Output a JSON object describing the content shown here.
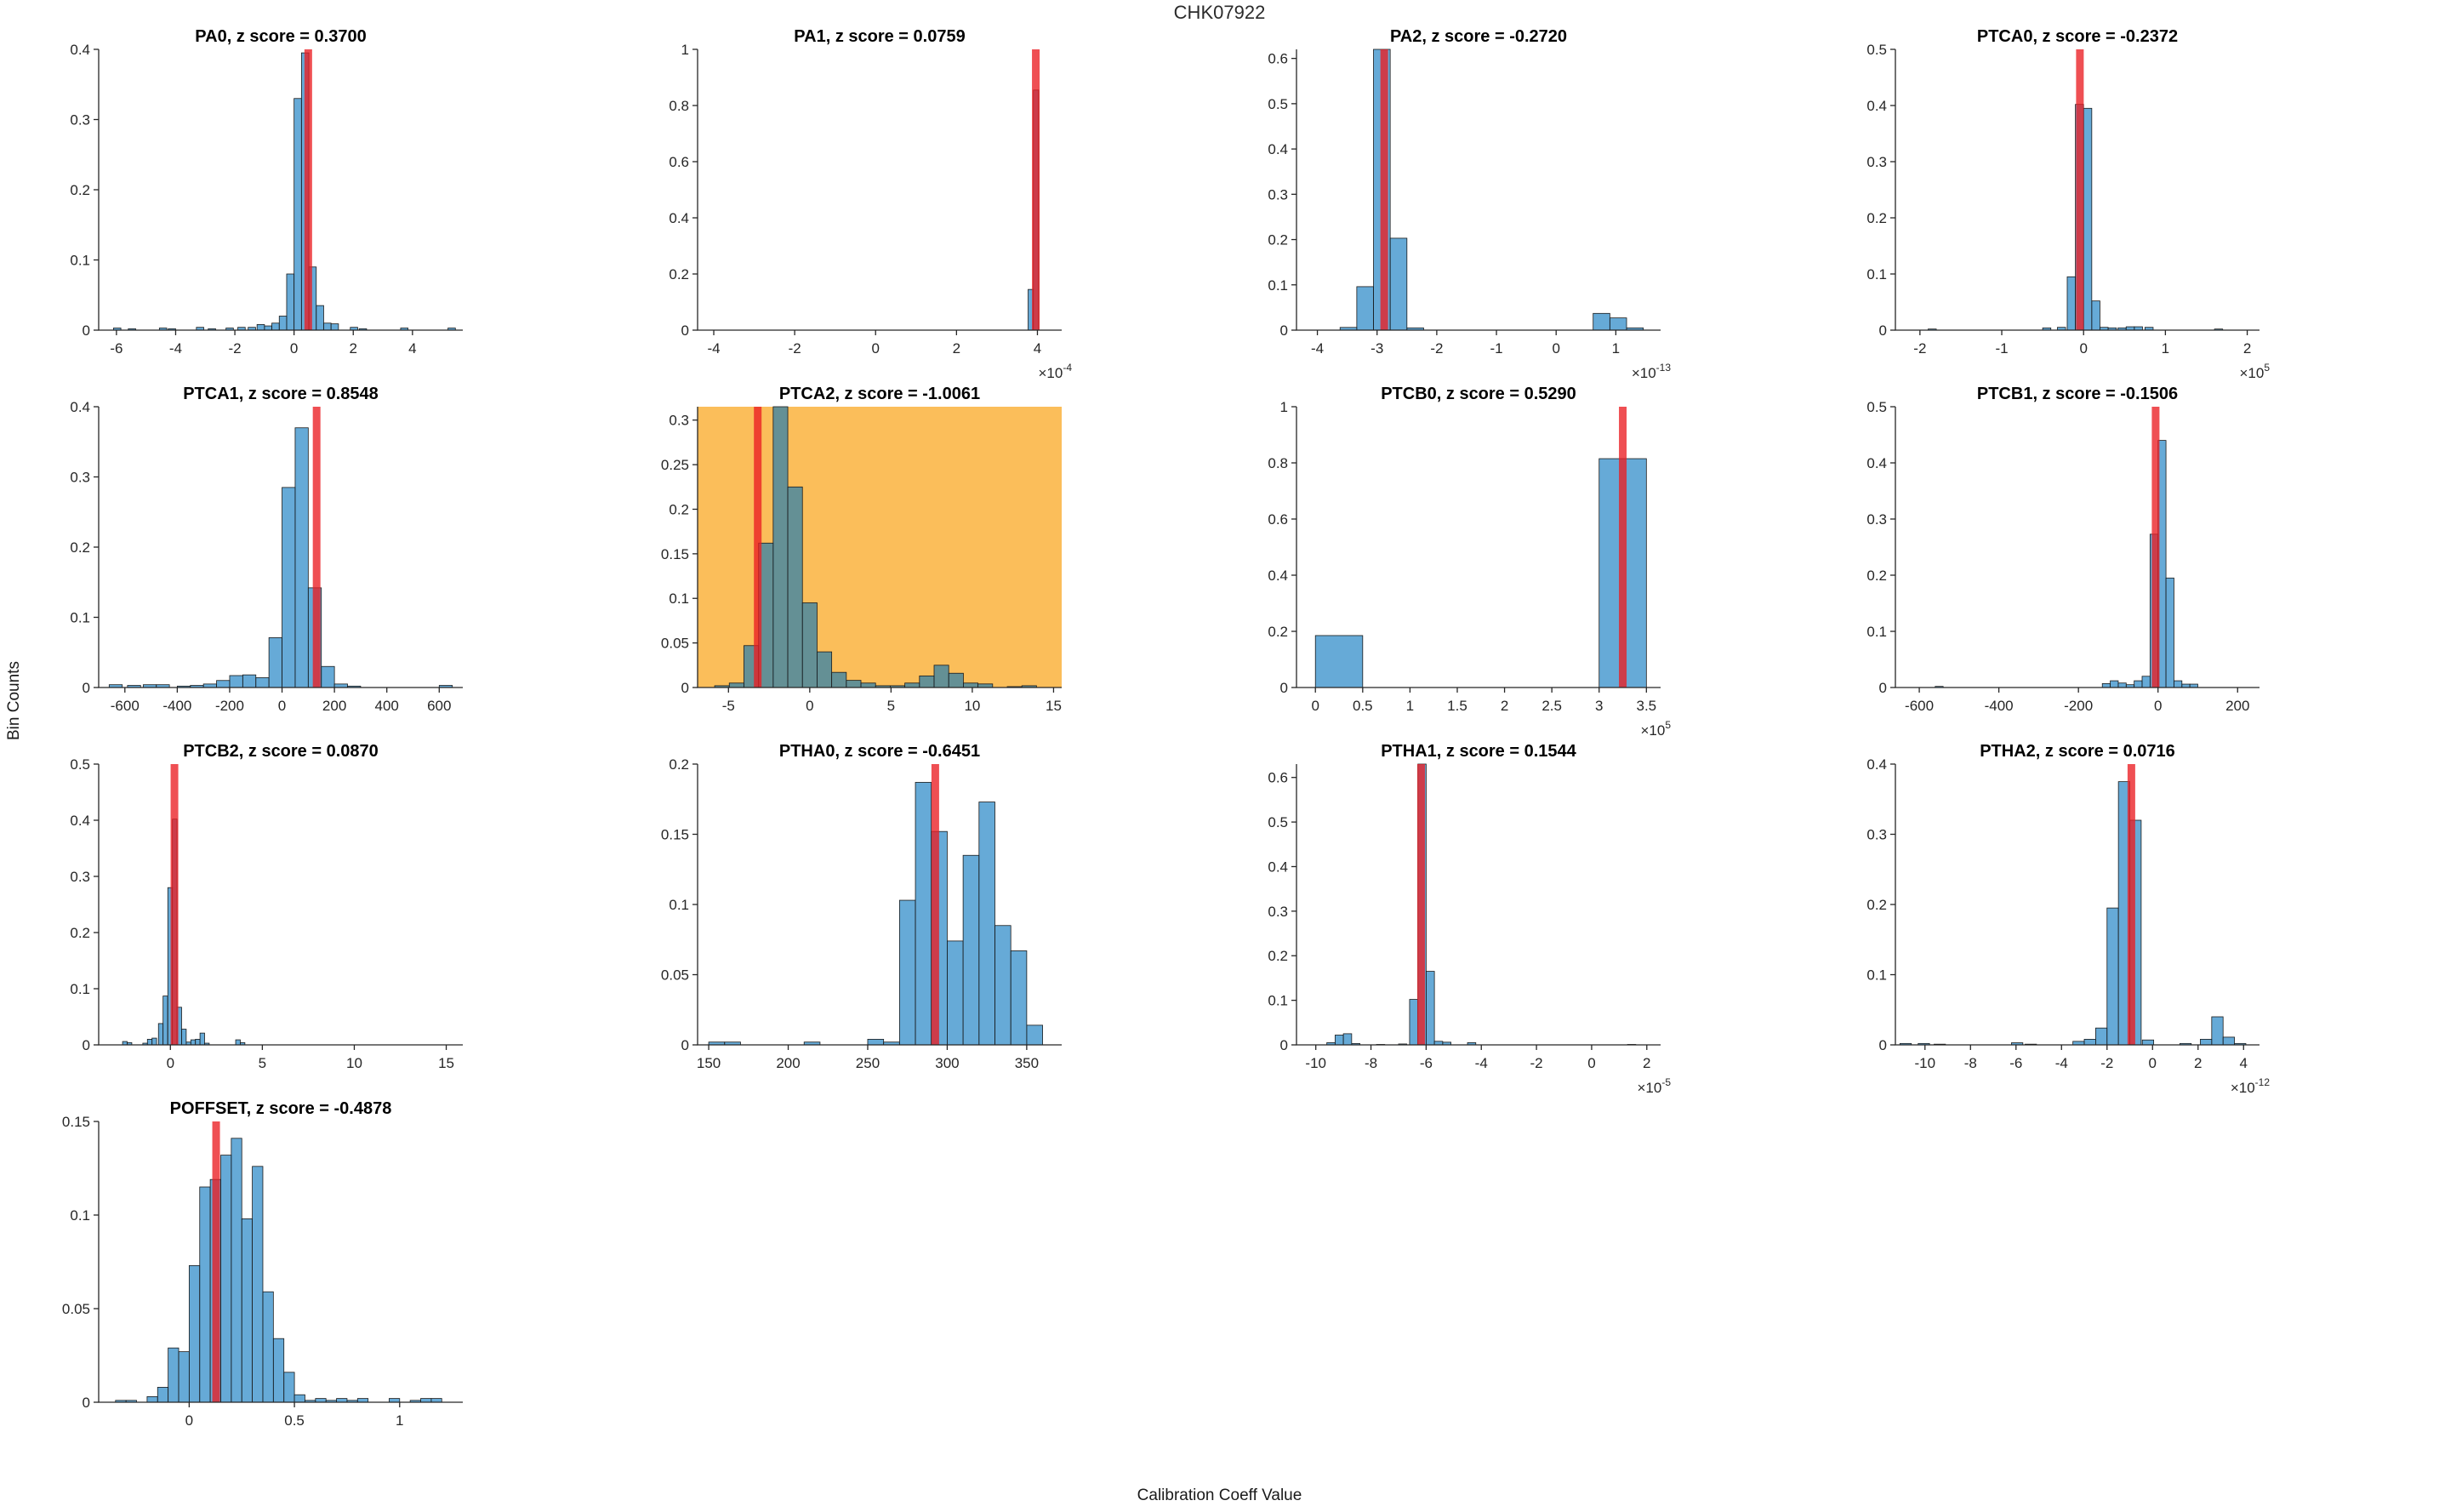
{
  "figure": {
    "title": "CHK07922",
    "ylabel": "Bin Counts",
    "xlabel": "Calibration Coeff Value"
  },
  "colors": {
    "bar_fill": "rgba(0,114,189,0.6)",
    "bar_edge": "#1a1a1a",
    "red_line": "rgba(235,30,35,0.78)",
    "highlight_bg": "#FBBE5A",
    "axis": "#262626",
    "title_text": "#000000",
    "fig_title_text": "#2b2b2b"
  },
  "chart_data": [
    {
      "type": "bar",
      "name": "PA0",
      "title": "PA0, z score = 0.3700",
      "z_score": 0.37,
      "xlim": [
        -6.6,
        5.7
      ],
      "ylim": [
        0,
        0.4
      ],
      "xticks": [
        -6,
        -4,
        -2,
        0,
        2,
        4
      ],
      "yticks": [
        0,
        0.1,
        0.2,
        0.3,
        0.4
      ],
      "x_exponent": null,
      "highlighted": false,
      "red_line_x": 0.48,
      "bin_width": 0.25,
      "bins": [
        [
          -6.1,
          0.003
        ],
        [
          -5.6,
          0.002
        ],
        [
          -4.55,
          0.003
        ],
        [
          -4.25,
          0.002
        ],
        [
          -3.3,
          0.004
        ],
        [
          -2.9,
          0.002
        ],
        [
          -2.3,
          0.003
        ],
        [
          -1.9,
          0.004
        ],
        [
          -1.55,
          0.004
        ],
        [
          -1.25,
          0.008
        ],
        [
          -1.0,
          0.006
        ],
        [
          -0.75,
          0.01
        ],
        [
          -0.5,
          0.02
        ],
        [
          -0.25,
          0.08
        ],
        [
          0,
          0.33
        ],
        [
          0.25,
          0.395
        ],
        [
          0.5,
          0.09
        ],
        [
          0.75,
          0.035
        ],
        [
          1.0,
          0.01
        ],
        [
          1.25,
          0.009
        ],
        [
          1.9,
          0.004
        ],
        [
          2.2,
          0.002
        ],
        [
          3.6,
          0.003
        ],
        [
          5.2,
          0.003
        ]
      ]
    },
    {
      "type": "bar",
      "name": "PA1",
      "title": "PA1, z score = 0.0759",
      "z_score": 0.0759,
      "xlim": [
        -4.4,
        4.6
      ],
      "ylim": [
        0,
        1
      ],
      "xticks": [
        -4,
        -2,
        0,
        2,
        4
      ],
      "yticks": [
        0,
        0.2,
        0.4,
        0.6,
        0.8,
        1
      ],
      "x_exponent": "-4",
      "highlighted": false,
      "red_line_x": 3.96,
      "bin_width": 0.13,
      "bins": [
        [
          3.77,
          0.145
        ],
        [
          3.9,
          0.855
        ]
      ]
    },
    {
      "type": "bar",
      "name": "PA2",
      "title": "PA2, z score = -0.2720",
      "z_score": -0.272,
      "xlim": [
        -4.35,
        1.75
      ],
      "ylim": [
        0,
        0.62
      ],
      "xticks": [
        -4,
        -3,
        -2,
        -1,
        0,
        1
      ],
      "yticks": [
        0,
        0.1,
        0.2,
        0.3,
        0.4,
        0.5,
        0.6
      ],
      "x_exponent": "-13",
      "highlighted": false,
      "red_line_x": -2.88,
      "bin_width": 0.28,
      "bins": [
        [
          -3.62,
          0.006
        ],
        [
          -3.34,
          0.096
        ],
        [
          -3.06,
          0.62
        ],
        [
          -2.78,
          0.203
        ],
        [
          -2.5,
          0.005
        ],
        [
          0.62,
          0.037
        ],
        [
          0.9,
          0.027
        ],
        [
          1.18,
          0.005
        ]
      ]
    },
    {
      "type": "bar",
      "name": "PTCA0",
      "title": "PTCA0, z score = -0.2372",
      "z_score": -0.2372,
      "xlim": [
        -2.3,
        2.15
      ],
      "ylim": [
        0,
        0.5
      ],
      "xticks": [
        -2,
        -1,
        0,
        1,
        2
      ],
      "yticks": [
        0,
        0.1,
        0.2,
        0.3,
        0.4,
        0.5
      ],
      "x_exponent": "5",
      "highlighted": false,
      "red_line_x": -0.045,
      "bin_width": 0.1,
      "bins": [
        [
          -1.9,
          0.002
        ],
        [
          -0.5,
          0.004
        ],
        [
          -0.32,
          0.005
        ],
        [
          -0.2,
          0.095
        ],
        [
          -0.1,
          0.402
        ],
        [
          0,
          0.395
        ],
        [
          0.1,
          0.052
        ],
        [
          0.2,
          0.005
        ],
        [
          0.3,
          0.004
        ],
        [
          0.42,
          0.004
        ],
        [
          0.52,
          0.006
        ],
        [
          0.62,
          0.006
        ],
        [
          0.75,
          0.005
        ],
        [
          1.6,
          0.002
        ]
      ]
    },
    {
      "type": "bar",
      "name": "PTCA1",
      "title": "PTCA1, z score = 0.8548",
      "z_score": 0.8548,
      "xlim": [
        -700,
        690
      ],
      "ylim": [
        0,
        0.4
      ],
      "xticks": [
        -600,
        -400,
        -200,
        0,
        200,
        400,
        600
      ],
      "yticks": [
        0,
        0.1,
        0.2,
        0.3,
        0.4
      ],
      "x_exponent": null,
      "highlighted": false,
      "red_line_x": 132,
      "bin_width": 50,
      "bins": [
        [
          -660,
          0.004
        ],
        [
          -590,
          0.003
        ],
        [
          -530,
          0.004
        ],
        [
          -480,
          0.004
        ],
        [
          -400,
          0.002
        ],
        [
          -350,
          0.003
        ],
        [
          -300,
          0.005
        ],
        [
          -250,
          0.01
        ],
        [
          -200,
          0.017
        ],
        [
          -150,
          0.018
        ],
        [
          -100,
          0.014
        ],
        [
          -50,
          0.071
        ],
        [
          0,
          0.285
        ],
        [
          50,
          0.37
        ],
        [
          100,
          0.142
        ],
        [
          150,
          0.03
        ],
        [
          200,
          0.005
        ],
        [
          250,
          0.002
        ],
        [
          600,
          0.003
        ]
      ]
    },
    {
      "type": "bar",
      "name": "PTCA2",
      "title": "PTCA2, z score = -1.0061",
      "z_score": -1.0061,
      "xlim": [
        -6.9,
        15.5
      ],
      "ylim": [
        0,
        0.315
      ],
      "xticks": [
        -5,
        0,
        5,
        10,
        15
      ],
      "yticks": [
        0,
        0.05,
        0.1,
        0.15,
        0.2,
        0.25,
        0.3
      ],
      "x_exponent": null,
      "highlighted": true,
      "red_line_x": -3.2,
      "bin_width": 0.9,
      "bins": [
        [
          -5.85,
          0.002
        ],
        [
          -4.95,
          0.005
        ],
        [
          -4.05,
          0.047
        ],
        [
          -3.15,
          0.162
        ],
        [
          -2.25,
          0.315
        ],
        [
          -1.35,
          0.225
        ],
        [
          -0.45,
          0.095
        ],
        [
          0.45,
          0.04
        ],
        [
          1.35,
          0.017
        ],
        [
          2.25,
          0.008
        ],
        [
          3.15,
          0.005
        ],
        [
          4.05,
          0.002
        ],
        [
          4.95,
          0.002
        ],
        [
          5.85,
          0.005
        ],
        [
          6.75,
          0.013
        ],
        [
          7.65,
          0.025
        ],
        [
          8.55,
          0.016
        ],
        [
          9.45,
          0.005
        ],
        [
          10.35,
          0.004
        ],
        [
          12.15,
          0.001
        ],
        [
          13.05,
          0.002
        ]
      ]
    },
    {
      "type": "bar",
      "name": "PTCB0",
      "title": "PTCB0, z score = 0.5290",
      "z_score": 0.529,
      "xlim": [
        -0.2,
        3.65
      ],
      "ylim": [
        0,
        1
      ],
      "xticks": [
        0,
        0.5,
        1,
        1.5,
        2,
        2.5,
        3,
        3.5
      ],
      "yticks": [
        0,
        0.2,
        0.4,
        0.6,
        0.8,
        1
      ],
      "x_exponent": "5",
      "highlighted": false,
      "red_line_x": 3.25,
      "bin_width": 0.5,
      "bins": [
        [
          0,
          0.185
        ],
        [
          3,
          0.815
        ]
      ]
    },
    {
      "type": "bar",
      "name": "PTCB1",
      "title": "PTCB1, z score = -0.1506",
      "z_score": -0.1506,
      "xlim": [
        -660,
        255
      ],
      "ylim": [
        0,
        0.5
      ],
      "xticks": [
        -600,
        -400,
        -200,
        0,
        200
      ],
      "yticks": [
        0,
        0.1,
        0.2,
        0.3,
        0.4,
        0.5
      ],
      "x_exponent": null,
      "highlighted": false,
      "red_line_x": -6,
      "bin_width": 20,
      "bins": [
        [
          -560,
          0.002
        ],
        [
          -140,
          0.007
        ],
        [
          -120,
          0.012
        ],
        [
          -100,
          0.008
        ],
        [
          -80,
          0.005
        ],
        [
          -60,
          0.012
        ],
        [
          -40,
          0.02
        ],
        [
          -20,
          0.273
        ],
        [
          0,
          0.44
        ],
        [
          20,
          0.195
        ],
        [
          40,
          0.012
        ],
        [
          60,
          0.006
        ],
        [
          80,
          0.006
        ]
      ]
    },
    {
      "type": "bar",
      "name": "PTCB2",
      "title": "PTCB2, z score = 0.0870",
      "z_score": 0.087,
      "xlim": [
        -3.9,
        15.9
      ],
      "ylim": [
        0,
        0.5
      ],
      "xticks": [
        0,
        5,
        10,
        15
      ],
      "yticks": [
        0,
        0.1,
        0.2,
        0.3,
        0.4,
        0.5
      ],
      "x_exponent": null,
      "highlighted": false,
      "red_line_x": 0.22,
      "bin_width": 0.25,
      "bins": [
        [
          -2.6,
          0.006
        ],
        [
          -2.35,
          0.004
        ],
        [
          -1.5,
          0.003
        ],
        [
          -1.25,
          0.01
        ],
        [
          -1.0,
          0.012
        ],
        [
          -0.65,
          0.038
        ],
        [
          -0.4,
          0.087
        ],
        [
          -0.14,
          0.28
        ],
        [
          0.11,
          0.402
        ],
        [
          0.36,
          0.067
        ],
        [
          0.61,
          0.028
        ],
        [
          0.86,
          0.005
        ],
        [
          1.11,
          0.009
        ],
        [
          1.36,
          0.01
        ],
        [
          1.61,
          0.021
        ],
        [
          1.86,
          0.003
        ],
        [
          3.55,
          0.009
        ],
        [
          3.8,
          0.004
        ]
      ]
    },
    {
      "type": "bar",
      "name": "PTHA0",
      "title": "PTHA0, z score = -0.6451",
      "z_score": -0.6451,
      "xlim": [
        143,
        372
      ],
      "ylim": [
        0,
        0.2
      ],
      "xticks": [
        150,
        200,
        250,
        300,
        350
      ],
      "yticks": [
        0,
        0.05,
        0.1,
        0.15,
        0.2
      ],
      "x_exponent": null,
      "highlighted": false,
      "red_line_x": 292.5,
      "bin_width": 10,
      "bins": [
        [
          150,
          0.002
        ],
        [
          160,
          0.002
        ],
        [
          210,
          0.002
        ],
        [
          250,
          0.004
        ],
        [
          260,
          0.002
        ],
        [
          270,
          0.103
        ],
        [
          280,
          0.187
        ],
        [
          290,
          0.152
        ],
        [
          300,
          0.074
        ],
        [
          310,
          0.135
        ],
        [
          320,
          0.173
        ],
        [
          330,
          0.085
        ],
        [
          340,
          0.067
        ],
        [
          350,
          0.014
        ]
      ]
    },
    {
      "type": "bar",
      "name": "PTHA1",
      "title": "PTHA1, z score = 0.1544",
      "z_score": 0.1544,
      "xlim": [
        -10.7,
        2.5
      ],
      "ylim": [
        0,
        0.63
      ],
      "xticks": [
        -10,
        -8,
        -6,
        -4,
        -2,
        0,
        2
      ],
      "yticks": [
        0,
        0.1,
        0.2,
        0.3,
        0.4,
        0.5,
        0.6
      ],
      "x_exponent": "-5",
      "highlighted": false,
      "red_line_x": -6.18,
      "bin_width": 0.3,
      "bins": [
        [
          -9.6,
          0.005
        ],
        [
          -9.3,
          0.022
        ],
        [
          -9.0,
          0.025
        ],
        [
          -8.7,
          0.003
        ],
        [
          -7.8,
          0.001
        ],
        [
          -7.0,
          0.002
        ],
        [
          -6.6,
          0.102
        ],
        [
          -6.3,
          0.63
        ],
        [
          -6.0,
          0.165
        ],
        [
          -5.7,
          0.008
        ],
        [
          -5.4,
          0.006
        ],
        [
          -4.5,
          0.005
        ],
        [
          1.3,
          0.001
        ]
      ]
    },
    {
      "type": "bar",
      "name": "PTHA2",
      "title": "PTHA2, z score = 0.0716",
      "z_score": 0.0716,
      "xlim": [
        -11.3,
        4.7
      ],
      "ylim": [
        0,
        0.4
      ],
      "xticks": [
        -10,
        -8,
        -6,
        -4,
        -2,
        0,
        2,
        4
      ],
      "yticks": [
        0,
        0.1,
        0.2,
        0.3,
        0.4
      ],
      "x_exponent": "-12",
      "highlighted": false,
      "red_line_x": -0.93,
      "bin_width": 0.5,
      "bins": [
        [
          -11.1,
          0.002
        ],
        [
          -10.3,
          0.002
        ],
        [
          -9.6,
          0.001
        ],
        [
          -6.2,
          0.003
        ],
        [
          -5.6,
          0.001
        ],
        [
          -3.5,
          0.005
        ],
        [
          -3.0,
          0.008
        ],
        [
          -2.5,
          0.024
        ],
        [
          -2.0,
          0.195
        ],
        [
          -1.5,
          0.375
        ],
        [
          -1.0,
          0.32
        ],
        [
          -0.45,
          0.007
        ],
        [
          1.2,
          0.002
        ],
        [
          2.1,
          0.008
        ],
        [
          2.6,
          0.04
        ],
        [
          3.1,
          0.011
        ],
        [
          3.6,
          0.002
        ]
      ]
    },
    {
      "type": "bar",
      "name": "POFFSET",
      "title": "POFFSET, z score = -0.4878",
      "z_score": -0.4878,
      "xlim": [
        -0.43,
        1.3
      ],
      "ylim": [
        0,
        0.15
      ],
      "xticks": [
        0,
        0.5,
        1
      ],
      "yticks": [
        0,
        0.05,
        0.1,
        0.15
      ],
      "x_exponent": null,
      "highlighted": false,
      "red_line_x": 0.128,
      "bin_width": 0.05,
      "bins": [
        [
          -0.35,
          0.001
        ],
        [
          -0.3,
          0.001
        ],
        [
          -0.2,
          0.003
        ],
        [
          -0.15,
          0.008
        ],
        [
          -0.1,
          0.029
        ],
        [
          -0.05,
          0.027
        ],
        [
          0,
          0.073
        ],
        [
          0.05,
          0.115
        ],
        [
          0.1,
          0.119
        ],
        [
          0.15,
          0.132
        ],
        [
          0.2,
          0.141
        ],
        [
          0.25,
          0.098
        ],
        [
          0.3,
          0.126
        ],
        [
          0.35,
          0.059
        ],
        [
          0.4,
          0.034
        ],
        [
          0.45,
          0.016
        ],
        [
          0.5,
          0.004
        ],
        [
          0.55,
          0.001
        ],
        [
          0.6,
          0.002
        ],
        [
          0.65,
          0.001
        ],
        [
          0.7,
          0.002
        ],
        [
          0.75,
          0.001
        ],
        [
          0.8,
          0.002
        ],
        [
          0.95,
          0.002
        ],
        [
          1.05,
          0.001
        ],
        [
          1.1,
          0.002
        ],
        [
          1.15,
          0.002
        ]
      ]
    }
  ]
}
